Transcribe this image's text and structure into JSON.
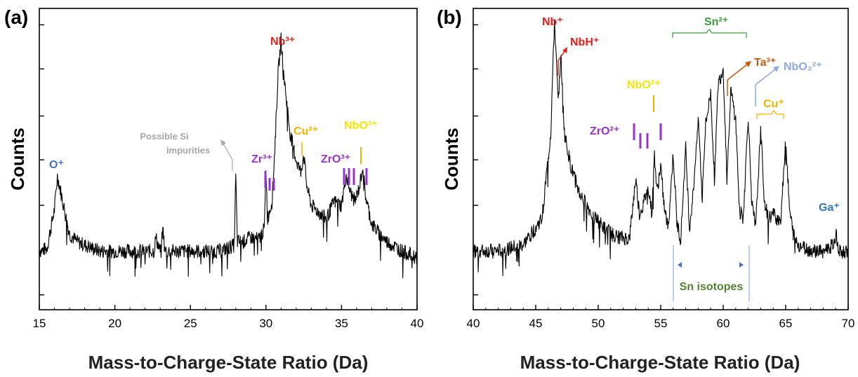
{
  "chart_data": [
    {
      "type": "line",
      "panel_label": "(a)",
      "xlabel": "Mass-to-Charge-State Ratio (Da)",
      "ylabel": "Counts",
      "xlim": [
        15,
        40
      ],
      "x_ticks": [
        "15",
        "20",
        "25",
        "30",
        "35",
        "40"
      ],
      "y_scale": "log",
      "y_tick_labels": "none",
      "grid": false,
      "series": [
        {
          "x": [
            15.0,
            15.5,
            16.0,
            16.2,
            16.6,
            17.0,
            17.5,
            18,
            19,
            20,
            21,
            22,
            22.6,
            22.7,
            23,
            23.2,
            23.3,
            24,
            25,
            26,
            27,
            27.9,
            28.0,
            28.1,
            28.5,
            29.0,
            29.5,
            29.9,
            30.0,
            30.1,
            30.4,
            30.6,
            30.8,
            31.0,
            31.2,
            31.6,
            32.0,
            32.3,
            32.5,
            32.7,
            33,
            34,
            34.5,
            35,
            35.3,
            35.6,
            35.9,
            36.2,
            36.4,
            36.6,
            37,
            37.5,
            38,
            39,
            40
          ],
          "y": [
            1.0,
            1.02,
            1.4,
            1.85,
            1.45,
            1.15,
            1.08,
            1.05,
            1.0,
            1.0,
            1.0,
            1.0,
            1.0,
            1.12,
            1.0,
            1.2,
            1.0,
            1.0,
            1.0,
            1.0,
            1.0,
            1.05,
            1.85,
            1.08,
            1.08,
            1.12,
            1.1,
            1.2,
            2.0,
            1.3,
            1.5,
            2.4,
            4.2,
            5.6,
            4.1,
            2.6,
            2.1,
            1.9,
            2.2,
            1.7,
            1.45,
            1.3,
            1.5,
            1.45,
            1.85,
            1.6,
            1.5,
            1.7,
            2.0,
            1.55,
            1.25,
            1.15,
            1.08,
            1.0,
            0.95
          ]
        }
      ],
      "annotations": [
        {
          "text": "O⁺",
          "x": 15.8,
          "y": 1.85,
          "color": "#4472c4"
        },
        {
          "text": "Possible Si impurities",
          "line1": "Possible Si",
          "line2": "impurities",
          "color": "#a6a6a6"
        },
        {
          "text": "Zr³⁺",
          "color": "#9933cc"
        },
        {
          "text": "Nb³⁺",
          "color": "#e0201b"
        },
        {
          "text": "Cu²⁺",
          "color": "#f0b400"
        },
        {
          "text": "ZrO³⁺",
          "color": "#9933cc"
        },
        {
          "text": "NbO³⁺",
          "color": "#f5e400"
        }
      ]
    },
    {
      "type": "line",
      "panel_label": "(b)",
      "xlabel": "Mass-to-Charge-State Ratio (Da)",
      "ylabel": "Counts",
      "xlim": [
        40,
        70
      ],
      "x_ticks": [
        "40",
        "45",
        "50",
        "55",
        "60",
        "65",
        "70"
      ],
      "y_scale": "log",
      "y_tick_labels": "none",
      "grid": false,
      "series": [
        {
          "x": [
            40,
            42,
            44,
            45.5,
            46.2,
            46.5,
            46.8,
            47.0,
            47.3,
            47.8,
            48.5,
            49.5,
            50.5,
            51.5,
            52.5,
            53.0,
            53.3,
            53.6,
            54.0,
            54.3,
            54.5,
            54.7,
            55.0,
            55.3,
            55.6,
            56.0,
            56.3,
            56.6,
            57.0,
            57.3,
            57.6,
            58.0,
            58.3,
            58.6,
            59.0,
            59.3,
            59.6,
            60.0,
            60.3,
            60.6,
            61.0,
            61.3,
            61.6,
            62.0,
            62.3,
            62.6,
            63.0,
            63.3,
            63.6,
            64.0,
            64.3,
            64.6,
            65.0,
            65.3,
            65.6,
            66,
            67,
            68,
            68.8,
            69,
            69.3,
            70
          ],
          "y": [
            1.0,
            1.0,
            1.05,
            1.3,
            2.6,
            6.5,
            3.3,
            5.0,
            2.6,
            2.0,
            1.6,
            1.35,
            1.2,
            1.12,
            1.1,
            1.8,
            1.35,
            1.45,
            1.7,
            1.35,
            2.2,
            1.6,
            2.0,
            1.4,
            1.2,
            2.2,
            1.25,
            1.1,
            2.3,
            1.2,
            1.6,
            3.0,
            1.6,
            2.8,
            3.6,
            1.8,
            3.9,
            4.4,
            1.8,
            3.7,
            2.9,
            1.4,
            1.3,
            3.0,
            1.45,
            1.2,
            2.7,
            1.5,
            1.3,
            1.35,
            1.3,
            1.3,
            2.5,
            1.4,
            1.15,
            1.05,
            1.0,
            1.0,
            1.05,
            1.15,
            1.0,
            1.0
          ]
        }
      ],
      "annotations": [
        {
          "text": "Nb⁺",
          "color": "#e0201b"
        },
        {
          "text": "NbH⁺",
          "color": "#e0201b"
        },
        {
          "text": "Sn²⁺",
          "color": "#3a9a3a"
        },
        {
          "text": "Ta³⁺",
          "color": "#c55a11"
        },
        {
          "text": "NbO₂²⁺",
          "color": "#8faadc"
        },
        {
          "text": "NbO²⁺",
          "color": "#f5e400"
        },
        {
          "text": "ZrO²⁺",
          "color": "#9933cc"
        },
        {
          "text": "Cu⁺",
          "color": "#f0b400"
        },
        {
          "text": "Ga⁺",
          "color": "#2e75b6"
        },
        {
          "text": "Sn isotopes",
          "color": "#548235"
        }
      ]
    }
  ]
}
